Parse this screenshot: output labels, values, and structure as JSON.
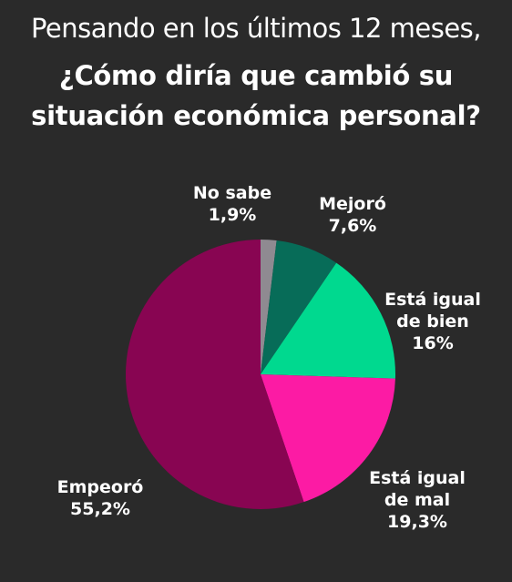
{
  "header": {
    "line1": "Pensando en los últimos 12 meses,",
    "line2": "¿Cómo diría que cambió su",
    "line3": "situación económica personal?"
  },
  "colors": {
    "background": "#2a2a2a",
    "no_sabe": "#8f8a91",
    "mejoro": "#076c58",
    "igual_bien": "#00d98f",
    "igual_mal": "#fc1ba4",
    "empeoro": "#880552"
  },
  "chart_data": {
    "type": "pie",
    "title": "Pensando en los últimos 12 meses, ¿Cómo diría que cambió su situación económica personal?",
    "unit": "%",
    "start_angle_deg": 0,
    "direction": "clockwise",
    "slices": [
      {
        "label_lines": [
          "No sabe"
        ],
        "value": 1.9,
        "value_text": "1,9%",
        "color": "#8f8a91"
      },
      {
        "label_lines": [
          "Mejoró"
        ],
        "value": 7.6,
        "value_text": "7,6%",
        "color": "#076c58"
      },
      {
        "label_lines": [
          "Está igual",
          "de bien"
        ],
        "value": 16,
        "value_text": "16%",
        "color": "#00d98f"
      },
      {
        "label_lines": [
          "Está igual",
          "de mal"
        ],
        "value": 19.3,
        "value_text": "19,3%",
        "color": "#fc1ba4"
      },
      {
        "label_lines": [
          "Empeoró"
        ],
        "value": 55.2,
        "value_text": "55,2%",
        "color": "#880552"
      }
    ]
  }
}
